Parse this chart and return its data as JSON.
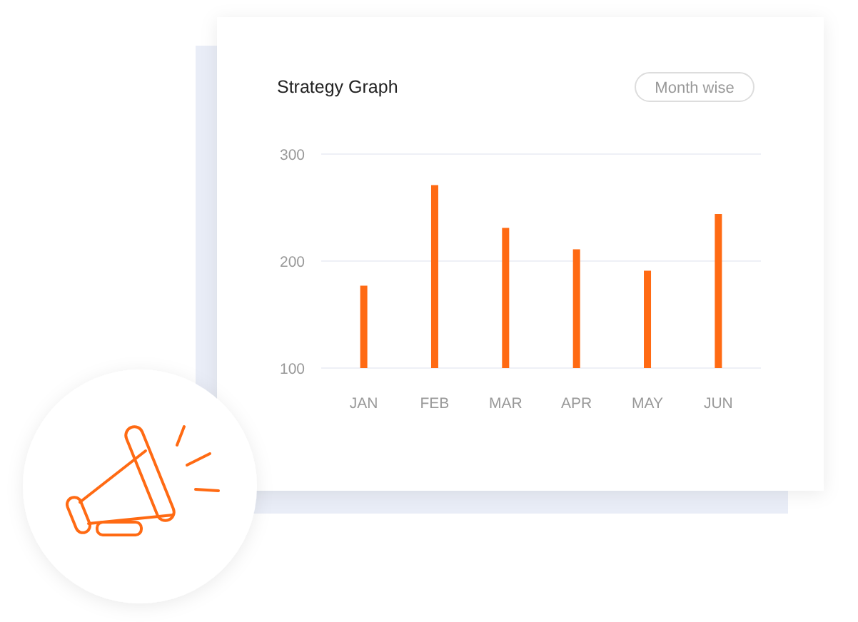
{
  "chart_data": {
    "type": "bar",
    "title": "Strategy Graph",
    "annotations": [
      "Month wise"
    ],
    "categories": [
      "JAN",
      "FEB",
      "MAR",
      "APR",
      "MAY",
      "JUN"
    ],
    "values": [
      177,
      271,
      231,
      211,
      191,
      244
    ],
    "color": "#ff6a13",
    "ylim": [
      100,
      300
    ],
    "yticks": [
      100,
      200,
      300
    ],
    "grid": "y"
  }
}
